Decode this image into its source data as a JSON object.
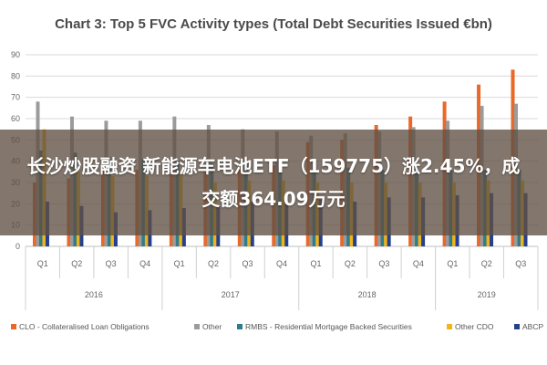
{
  "chart_data": {
    "type": "bar",
    "title": "Chart 3: Top 5 FVC Activity types (Total Debt Securities Issued €bn)",
    "ylim": [
      0,
      90
    ],
    "yticks": [
      0,
      10,
      20,
      30,
      40,
      50,
      60,
      70,
      80,
      90
    ],
    "grid": true,
    "legend_position": "bottom",
    "categories": [
      "Q1",
      "Q2",
      "Q3",
      "Q4",
      "Q1",
      "Q2",
      "Q3",
      "Q4",
      "Q1",
      "Q2",
      "Q3",
      "Q4",
      "Q1",
      "Q2",
      "Q3"
    ],
    "groups": [
      {
        "label": "2016",
        "count": 4
      },
      {
        "label": "2017",
        "count": 4
      },
      {
        "label": "2018",
        "count": 4
      },
      {
        "label": "2019",
        "count": 3
      }
    ],
    "series": [
      {
        "name": "CLO - Collateralised Loan Obligations",
        "color": "#e8692a",
        "values": [
          30,
          32,
          35,
          36,
          34,
          35,
          36,
          38,
          49,
          50,
          57,
          61,
          68,
          76,
          83
        ]
      },
      {
        "name": "Other",
        "color": "#9b9b9b",
        "values": [
          68,
          61,
          59,
          59,
          61,
          57,
          55,
          54,
          52,
          53,
          54,
          56,
          59,
          66,
          67
        ]
      },
      {
        "name": "RMBS - Residential Mortgage Backed Securities",
        "color": "#2e7d8c",
        "values": [
          45,
          44,
          42,
          41,
          40,
          39,
          38,
          37,
          37,
          37,
          36,
          36,
          36,
          36,
          36
        ]
      },
      {
        "name": "Other CDO",
        "color": "#f2b31a",
        "values": [
          55,
          35,
          33,
          33,
          34,
          30,
          31,
          31,
          30,
          30,
          30,
          30,
          30,
          31,
          31
        ]
      },
      {
        "name": "ABCP",
        "color": "#24408e",
        "values": [
          21,
          19,
          16,
          17,
          18,
          19,
          21,
          22,
          22,
          21,
          23,
          23,
          24,
          25,
          25
        ]
      }
    ]
  },
  "overlay": {
    "text": "长沙炒股融资 新能源车电池ETF（159775）涨2.45%，成交额364.09万元"
  }
}
